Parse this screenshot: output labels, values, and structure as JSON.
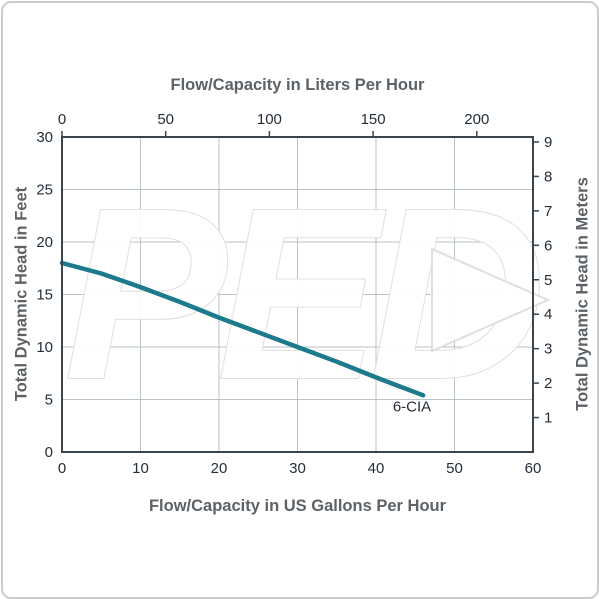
{
  "watermark": {
    "text": "PED",
    "color": "#ffffff",
    "outline": "#dedede"
  },
  "chart_data": {
    "type": "line",
    "title_top": "Flow/Capacity in Liters Per Hour",
    "title_bottom": "Flow/Capacity in US Gallons Per Hour",
    "ylabel_left": "Total Dynamic Head in Feet",
    "ylabel_right": "Total Dynamic Head in Meters",
    "x_bottom": {
      "min": 0,
      "max": 60,
      "ticks": [
        0,
        10,
        20,
        30,
        40,
        50,
        60
      ]
    },
    "x_top": {
      "min": 0,
      "max": 227.1,
      "ticks": [
        0,
        50,
        100,
        150,
        200
      ]
    },
    "y_left": {
      "min": 0,
      "max": 30,
      "ticks": [
        0,
        5,
        10,
        15,
        20,
        25,
        30
      ]
    },
    "y_right": {
      "ticks": [
        1,
        2,
        3,
        4,
        5,
        6,
        7,
        8,
        9
      ],
      "feet_per_meter": 3.2808
    },
    "series": [
      {
        "name": "6-CIA",
        "label": "6-CIA",
        "color": "#1d7a8c",
        "points": [
          [
            0,
            18
          ],
          [
            5,
            17
          ],
          [
            10,
            15.7
          ],
          [
            15,
            14.3
          ],
          [
            20,
            12.8
          ],
          [
            25,
            11.4
          ],
          [
            30,
            10
          ],
          [
            35,
            8.6
          ],
          [
            40,
            7.1
          ],
          [
            46,
            5.4
          ]
        ],
        "label_at": [
          44.5,
          4.3
        ]
      }
    ],
    "grid_on": true,
    "grid_color": "#b9c2c7",
    "axis_color": "#3a444d",
    "tick_label_color": "#242e38",
    "title_color": "#5d6266",
    "legend": "none"
  }
}
